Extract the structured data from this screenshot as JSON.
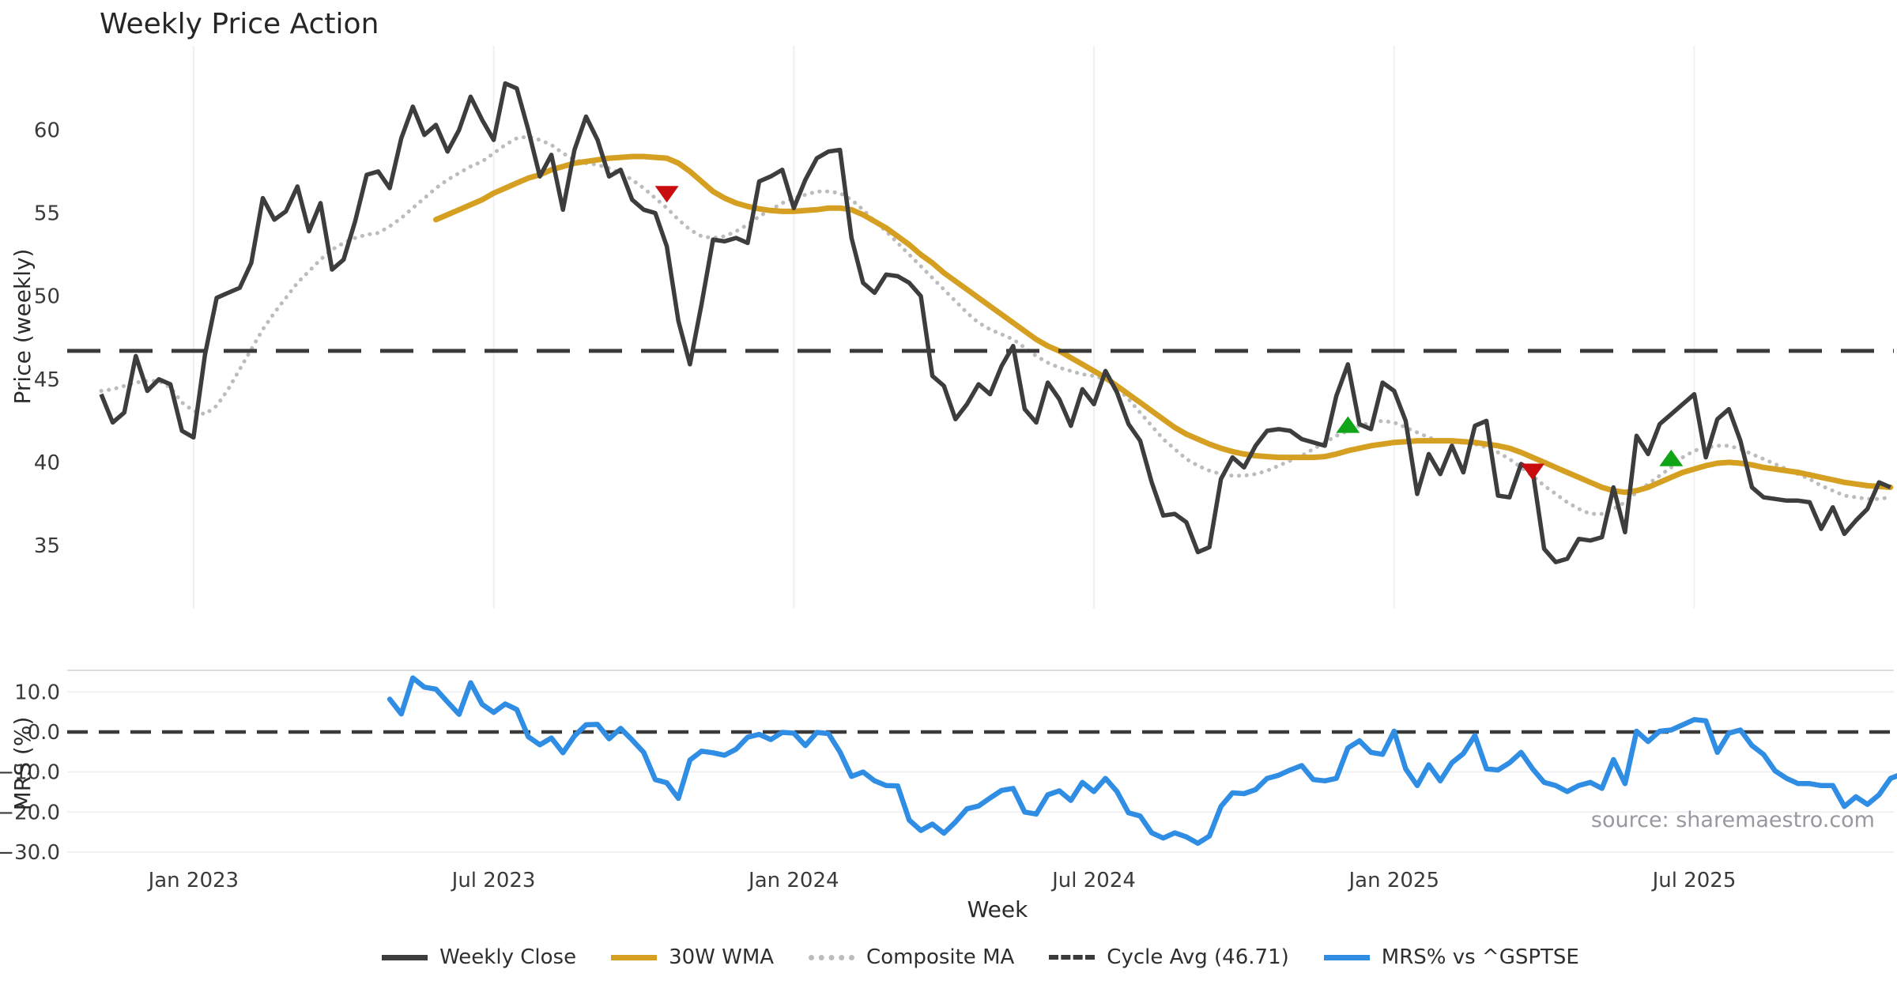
{
  "title": "Weekly Price Action",
  "source_note": "source: sharemaestro.com",
  "legend": [
    {
      "label": "Weekly Close",
      "style": "solid",
      "color": "#3d3d3d"
    },
    {
      "label": "30W WMA",
      "style": "solid",
      "color": "#d5a021"
    },
    {
      "label": "Composite MA",
      "style": "dotted",
      "color": "#bcbcbc"
    },
    {
      "label": "Cycle Avg (46.71)",
      "style": "dashed",
      "color": "#3a3a3a"
    },
    {
      "label": "MRS% vs ^GSPTSE",
      "style": "solid",
      "color": "#2f8de4"
    }
  ],
  "colors": {
    "close": "#3d3d3d",
    "wma": "#d5a021",
    "composite": "#bcbcbc",
    "cycle": "#3a3a3a",
    "mrs": "#2f8de4",
    "buy": "#0fa517",
    "sell": "#c90d0f",
    "grid": "#eef0f4",
    "panel_border": "#dcdce1",
    "tick_text": "#3a3a3a",
    "source_text": "#98989e"
  },
  "chart_data": {
    "type": "line",
    "x": {
      "label": "Week",
      "range": [
        0,
        155
      ],
      "tick_positions": [
        8,
        34,
        60,
        86,
        112,
        138
      ],
      "tick_labels": [
        "Jan 2023",
        "Jul 2023",
        "Jan 2024",
        "Jul 2024",
        "Jan 2025",
        "Jul 2025"
      ]
    },
    "price_panel": {
      "ylabel": "Price (weekly)",
      "ylim": [
        31.2,
        65.2
      ],
      "yticks": [
        35,
        40,
        45,
        50,
        55,
        60
      ],
      "cycle_avg": 46.71,
      "series": [
        {
          "name": "Weekly Close",
          "key": "close",
          "x0": 0,
          "values": [
            44.1,
            42.4,
            43.0,
            46.4,
            44.3,
            45.0,
            44.7,
            41.9,
            41.5,
            46.5,
            49.9,
            50.2,
            50.5,
            52.0,
            55.9,
            54.6,
            55.1,
            56.6,
            53.9,
            55.6,
            51.6,
            52.2,
            54.5,
            57.3,
            57.5,
            56.5,
            59.5,
            61.4,
            59.7,
            60.3,
            58.7,
            60.0,
            62.0,
            60.6,
            59.4,
            62.8,
            62.5,
            60.0,
            57.2,
            58.5,
            55.2,
            58.8,
            60.8,
            59.4,
            57.2,
            57.6,
            55.8,
            55.2,
            55.0,
            53.0,
            48.5,
            45.9,
            49.5,
            53.4,
            53.3,
            53.5,
            53.2,
            56.9,
            57.2,
            57.6,
            55.3,
            57.0,
            58.3,
            58.7,
            58.8,
            53.5,
            50.8,
            50.2,
            51.3,
            51.2,
            50.8,
            50.0,
            45.2,
            44.6,
            42.6,
            43.5,
            44.7,
            44.1,
            45.8,
            47.0,
            43.2,
            42.4,
            44.8,
            43.8,
            42.2,
            44.4,
            43.5,
            45.5,
            44.2,
            42.3,
            41.3,
            38.8,
            36.8,
            36.9,
            36.4,
            34.6,
            34.9,
            39.0,
            40.3,
            39.7,
            41.0,
            41.9,
            42.0,
            41.9,
            41.4,
            41.2,
            41.0,
            44.0,
            45.9,
            42.3,
            42.0,
            44.8,
            44.3,
            42.5,
            38.1,
            40.5,
            39.3,
            41.0,
            39.4,
            42.2,
            42.5,
            38.0,
            37.9,
            39.9,
            39.5,
            34.8,
            34.0,
            34.2,
            35.4,
            35.3,
            35.5,
            38.5,
            35.8,
            41.6,
            40.5,
            42.3,
            42.9,
            43.5,
            44.1,
            40.3,
            42.6,
            43.2,
            41.3,
            38.5,
            37.9,
            37.8,
            37.7,
            37.7,
            37.6,
            36.0,
            37.3,
            35.7,
            36.5,
            37.2,
            38.8,
            38.5
          ]
        },
        {
          "name": "30W WMA",
          "key": "wma",
          "x0": 29,
          "values": [
            54.6,
            54.9,
            55.2,
            55.5,
            55.8,
            56.2,
            56.5,
            56.8,
            57.1,
            57.3,
            57.6,
            57.8,
            58.0,
            58.1,
            58.2,
            58.3,
            58.35,
            58.4,
            58.4,
            58.35,
            58.3,
            58.0,
            57.5,
            56.9,
            56.3,
            55.9,
            55.6,
            55.4,
            55.25,
            55.15,
            55.1,
            55.1,
            55.15,
            55.2,
            55.3,
            55.3,
            55.2,
            54.9,
            54.5,
            54.1,
            53.6,
            53.1,
            52.5,
            52.0,
            51.4,
            50.9,
            50.4,
            49.9,
            49.4,
            48.9,
            48.4,
            47.9,
            47.4,
            47.0,
            46.7,
            46.3,
            45.9,
            45.5,
            45.1,
            44.6,
            44.1,
            43.6,
            43.1,
            42.6,
            42.1,
            41.7,
            41.4,
            41.1,
            40.85,
            40.65,
            40.5,
            40.4,
            40.35,
            40.3,
            40.3,
            40.3,
            40.3,
            40.35,
            40.5,
            40.7,
            40.85,
            41.0,
            41.1,
            41.2,
            41.25,
            41.3,
            41.3,
            41.3,
            41.3,
            41.25,
            41.2,
            41.1,
            41.0,
            40.85,
            40.6,
            40.3,
            40.0,
            39.7,
            39.4,
            39.1,
            38.8,
            38.5,
            38.3,
            38.2,
            38.3,
            38.5,
            38.8,
            39.1,
            39.4,
            39.6,
            39.8,
            39.95,
            40.0,
            39.95,
            39.85,
            39.7,
            39.6,
            39.5,
            39.4,
            39.25,
            39.1,
            38.95,
            38.8,
            38.7,
            38.6,
            38.55,
            38.5
          ]
        },
        {
          "name": "Composite MA",
          "key": "composite",
          "x0": 0,
          "values": [
            44.3,
            44.4,
            44.6,
            44.8,
            44.9,
            44.9,
            44.5,
            43.6,
            43.1,
            42.9,
            43.4,
            44.4,
            45.6,
            46.8,
            48.0,
            49.0,
            49.9,
            50.8,
            51.5,
            52.2,
            52.8,
            53.2,
            53.5,
            53.7,
            53.8,
            54.2,
            54.7,
            55.3,
            55.9,
            56.5,
            57.0,
            57.4,
            57.8,
            58.1,
            58.6,
            59.1,
            59.5,
            59.6,
            59.4,
            59.1,
            58.6,
            58.2,
            58.0,
            57.9,
            57.7,
            57.4,
            57.0,
            56.5,
            55.9,
            55.3,
            54.6,
            54.0,
            53.6,
            53.5,
            53.6,
            53.9,
            54.3,
            54.8,
            55.2,
            55.6,
            55.9,
            56.1,
            56.3,
            56.3,
            56.2,
            55.8,
            55.2,
            54.5,
            53.9,
            53.2,
            52.5,
            51.8,
            51.1,
            50.4,
            49.7,
            49.0,
            48.4,
            48.0,
            47.7,
            47.4,
            46.9,
            46.4,
            46.0,
            45.7,
            45.5,
            45.3,
            45.2,
            45.0,
            44.5,
            43.8,
            43.0,
            42.2,
            41.4,
            40.8,
            40.2,
            39.8,
            39.5,
            39.3,
            39.2,
            39.2,
            39.3,
            39.5,
            39.8,
            40.1,
            40.4,
            40.8,
            41.2,
            41.6,
            41.9,
            42.2,
            42.4,
            42.5,
            42.4,
            42.1,
            41.8,
            41.5,
            41.3,
            41.2,
            41.2,
            41.1,
            40.9,
            40.6,
            40.2,
            39.7,
            39.2,
            38.6,
            38.1,
            37.6,
            37.2,
            36.9,
            36.9,
            37.2,
            37.6,
            38.2,
            38.7,
            39.2,
            39.7,
            40.3,
            40.7,
            40.9,
            41.0,
            41.0,
            40.8,
            40.5,
            40.2,
            39.9,
            39.6,
            39.3,
            39.0,
            38.6,
            38.3,
            38.0,
            37.9,
            37.8,
            37.8,
            37.9
          ]
        }
      ],
      "markers": {
        "buy": [
          {
            "week": 108,
            "value": 42.2
          },
          {
            "week": 136,
            "value": 40.2
          }
        ],
        "sell": [
          {
            "week": 49,
            "value": 56.2
          },
          {
            "week": 124,
            "value": 39.5
          }
        ]
      }
    },
    "mrs_panel": {
      "ylabel": "MRS (%)",
      "ylim": [
        -31.6,
        15.4
      ],
      "yticks": [
        10.0,
        0.0,
        -10.0,
        -20.0,
        -30.0
      ],
      "zero_line": 0.0,
      "series": [
        {
          "name": "MRS% vs ^GSPTSE",
          "key": "mrs",
          "x0": 25,
          "values": [
            8.2,
            4.5,
            13.5,
            11.2,
            10.7,
            7.5,
            4.4,
            12.3,
            6.9,
            4.9,
            7.0,
            5.6,
            -1.2,
            -3.2,
            -1.5,
            -5.2,
            -1.0,
            1.8,
            1.9,
            -1.7,
            0.9,
            -2.0,
            -5.1,
            -11.9,
            -12.7,
            -16.6,
            -7.0,
            -4.8,
            -5.2,
            -5.8,
            -4.3,
            -1.3,
            -0.6,
            -1.9,
            -0.1,
            -0.3,
            -3.4,
            -0.1,
            -0.4,
            -5.0,
            -11.1,
            -10.0,
            -12.2,
            -13.4,
            -13.5,
            -22.0,
            -24.6,
            -23.0,
            -25.3,
            -22.5,
            -19.2,
            -18.5,
            -16.5,
            -14.6,
            -14.1,
            -20.0,
            -20.5,
            -15.7,
            -14.7,
            -17.1,
            -12.6,
            -14.9,
            -11.6,
            -14.9,
            -20.2,
            -21.0,
            -25.2,
            -26.5,
            -25.2,
            -26.2,
            -27.8,
            -26.0,
            -18.6,
            -15.2,
            -15.4,
            -14.4,
            -11.6,
            -10.8,
            -9.5,
            -8.4,
            -11.9,
            -12.2,
            -11.6,
            -4.0,
            -2.2,
            -5.1,
            -5.6,
            0.2,
            -9.2,
            -13.4,
            -8.2,
            -12.2,
            -7.7,
            -5.4,
            -0.9,
            -9.2,
            -9.5,
            -7.7,
            -5.1,
            -9.2,
            -12.6,
            -13.4,
            -14.9,
            -13.4,
            -12.6,
            -14.1,
            -6.9,
            -12.9,
            0.2,
            -2.4,
            0.2,
            0.5,
            1.8,
            3.1,
            2.8,
            -5.1,
            -0.3,
            0.5,
            -3.4,
            -5.6,
            -9.7,
            -11.6,
            -12.9,
            -12.9,
            -13.4,
            -13.4,
            -18.6,
            -16.2,
            -18.1,
            -15.7,
            -11.6,
            -10.5
          ]
        }
      ]
    }
  }
}
